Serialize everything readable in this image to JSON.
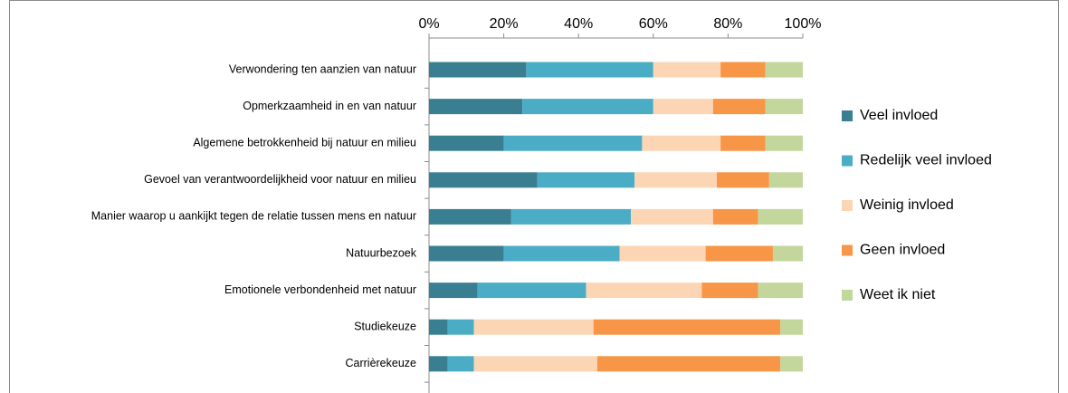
{
  "chart_data": {
    "type": "stacked-bar-horizontal",
    "categories": [
      "Verwondering ten aanzien van natuur",
      "Opmerkzaamheid in en van natuur",
      "Algemene betrokkenheid bij natuur en milieu",
      "Gevoel van verantwoordelijkheid voor natuur en milieu",
      "Manier waarop u aankijkt tegen de relatie tussen mens en natuur",
      "Natuurbezoek",
      "Emotionele verbondenheid met natuur",
      "Studiekeuze",
      "Carrièrekeuze"
    ],
    "series": [
      {
        "name": "Veel invloed",
        "color": "#3a7f91",
        "values": [
          26,
          25,
          20,
          29,
          22,
          20,
          13,
          5,
          5
        ]
      },
      {
        "name": "Redelijk veel invloed",
        "color": "#4bacc6",
        "values": [
          34,
          35,
          37,
          26,
          32,
          31,
          29,
          7,
          7
        ]
      },
      {
        "name": "Weinig invloed",
        "color": "#fcd5b5",
        "values": [
          18,
          16,
          21,
          22,
          22,
          23,
          31,
          32,
          33
        ]
      },
      {
        "name": "Geen invloed",
        "color": "#f79646",
        "values": [
          12,
          14,
          12,
          14,
          12,
          18,
          15,
          50,
          49
        ]
      },
      {
        "name": "Weet ik niet",
        "color": "#c3d69b",
        "values": [
          10,
          10,
          10,
          9,
          12,
          8,
          12,
          6,
          6
        ]
      }
    ],
    "xlim": [
      0,
      100
    ],
    "xticks": [
      {
        "value": 0,
        "label": "0%"
      },
      {
        "value": 20,
        "label": "20%"
      },
      {
        "value": 40,
        "label": "40%"
      },
      {
        "value": 60,
        "label": "60%"
      },
      {
        "value": 80,
        "label": "80%"
      },
      {
        "value": 100,
        "label": "100%"
      }
    ],
    "legend": "right"
  }
}
